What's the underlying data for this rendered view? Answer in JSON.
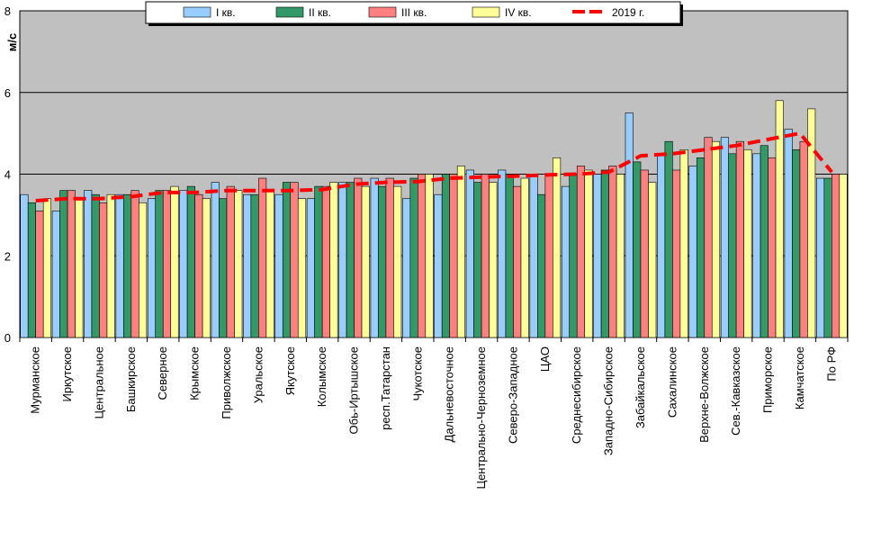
{
  "chart_data": {
    "type": "bar",
    "ylabel": "м/с",
    "ylim": [
      0,
      8
    ],
    "yticks": [
      0,
      2,
      4,
      6,
      8
    ],
    "grid": true,
    "legend_position": "top",
    "categories": [
      "Мурманское",
      "Иркутское",
      "Центральное",
      "Башкирское",
      "Северное",
      "Крымское",
      "Приволжское",
      "Уральское",
      "Якутское",
      "Колымское",
      "Обь-Иртышское",
      "респ.Татарстан",
      "Чукотское",
      "Дальневосточное",
      "Центрально-Черноземное",
      "Северо-Западное",
      "ЦАО",
      "Среднесибирское",
      "Западно-Сибирское",
      "Забайкальское",
      "Сахалинское",
      "Верхне-Волжское",
      "Сев.-Кавказское",
      "Приморское",
      "Камчатское",
      "По РФ"
    ],
    "series": [
      {
        "name": "I кв.",
        "color": "#99ccff",
        "values": [
          3.5,
          3.1,
          3.6,
          3.5,
          3.4,
          3.6,
          3.8,
          3.5,
          3.5,
          3.4,
          3.8,
          3.9,
          3.4,
          3.5,
          4.1,
          4.1,
          4.0,
          3.7,
          4.0,
          5.5,
          4.5,
          4.2,
          4.9,
          4.5,
          5.1,
          3.9
        ]
      },
      {
        "name": "II кв.",
        "color": "#339966",
        "values": [
          3.3,
          3.6,
          3.5,
          3.5,
          3.6,
          3.7,
          3.4,
          3.5,
          3.8,
          3.7,
          3.8,
          3.7,
          3.9,
          4.0,
          3.8,
          4.0,
          3.5,
          4.0,
          4.1,
          4.3,
          4.8,
          4.4,
          4.5,
          4.7,
          4.6,
          3.9
        ]
      },
      {
        "name": "III кв.",
        "color": "#ff8080",
        "values": [
          3.1,
          3.6,
          3.3,
          3.6,
          3.6,
          3.5,
          3.7,
          3.9,
          3.8,
          3.7,
          3.9,
          3.9,
          4.0,
          4.0,
          4.0,
          3.7,
          4.0,
          4.2,
          4.2,
          4.1,
          4.1,
          4.9,
          4.8,
          4.4,
          4.8,
          4.0
        ]
      },
      {
        "name": "IV кв.",
        "color": "#ffff99",
        "values": [
          3.4,
          3.4,
          3.5,
          3.3,
          3.7,
          3.4,
          3.6,
          3.6,
          3.4,
          3.8,
          3.7,
          3.7,
          4.0,
          4.2,
          3.8,
          3.9,
          4.4,
          4.1,
          4.0,
          3.8,
          4.6,
          4.8,
          4.6,
          5.8,
          5.6,
          4.0
        ]
      }
    ],
    "line_series": {
      "name": "2019 г.",
      "color": "#ff0000",
      "values": [
        3.35,
        3.4,
        3.4,
        3.45,
        3.55,
        3.55,
        3.6,
        3.6,
        3.6,
        3.62,
        3.75,
        3.8,
        3.82,
        3.9,
        3.93,
        3.95,
        3.98,
        4.0,
        4.05,
        4.45,
        4.5,
        4.6,
        4.7,
        4.85,
        5.0,
        4.05
      ]
    }
  }
}
